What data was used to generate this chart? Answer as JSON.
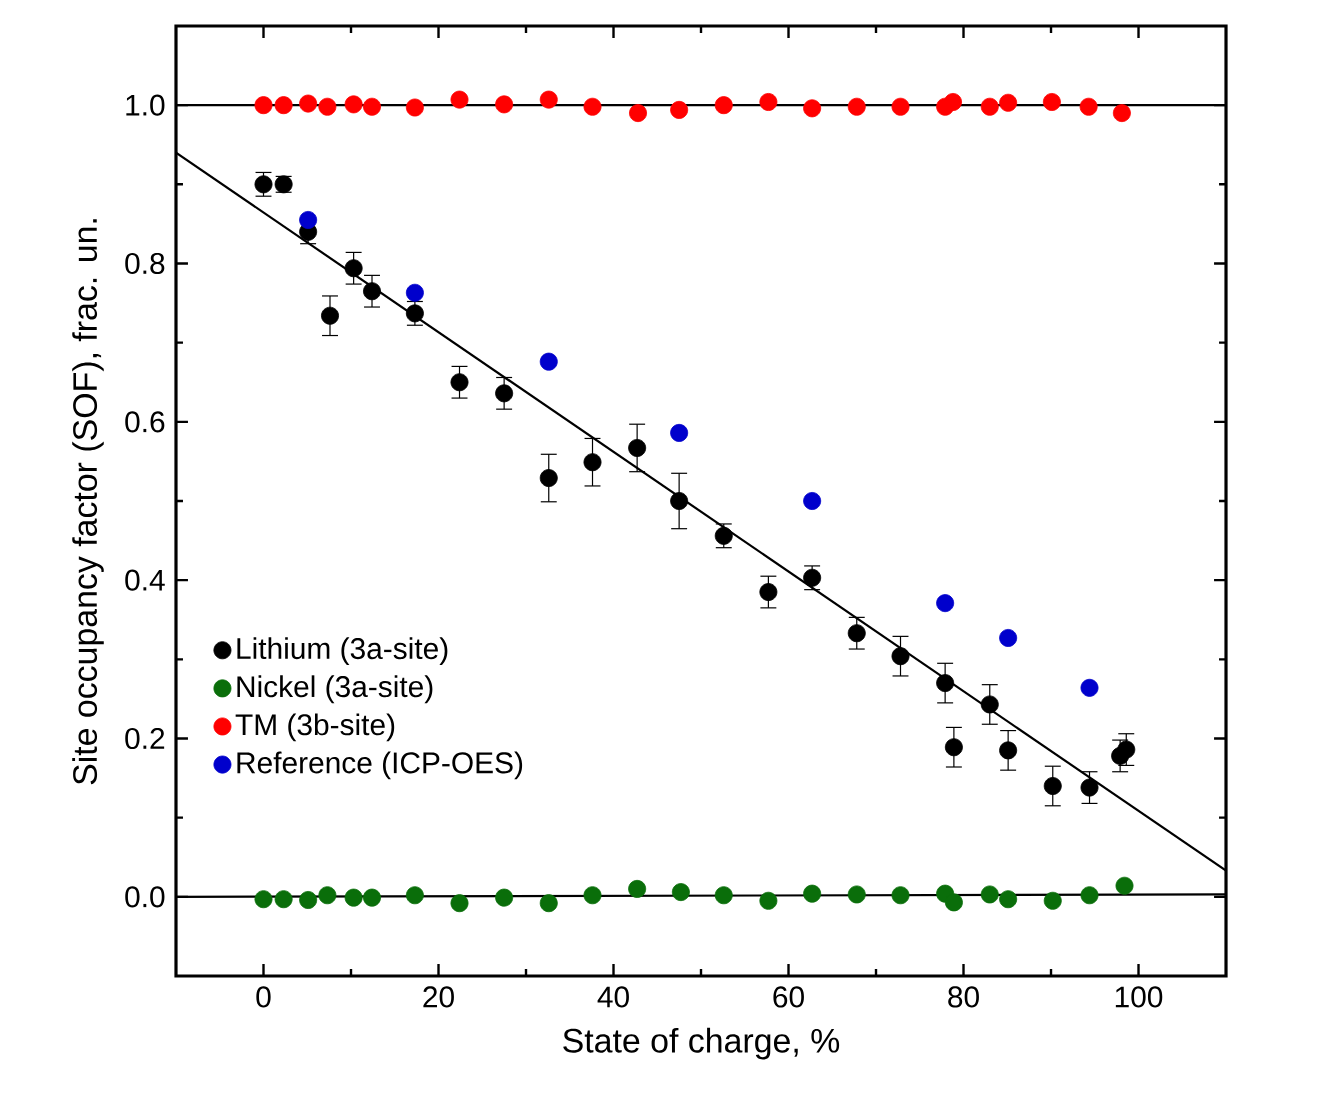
{
  "chart_data": {
    "type": "scatter",
    "xlabel": "State of charge, %",
    "ylabel": "Site occupancy factor (SOF), frac. un.",
    "xlim": [
      -10,
      110
    ],
    "ylim": [
      -0.1,
      1.1
    ],
    "xticks": [
      0,
      20,
      40,
      60,
      80,
      100
    ],
    "yticks": [
      {
        "value": 0,
        "label": "0.0"
      },
      {
        "value": 0.2,
        "label": "0.2"
      },
      {
        "value": 0.4,
        "label": "0.4"
      },
      {
        "value": 0.6,
        "label": "0.6"
      },
      {
        "value": 0.8,
        "label": "0.8"
      },
      {
        "value": 1,
        "label": "1.0"
      }
    ],
    "legend": "bottom left",
    "grid": false,
    "series": [
      {
        "name": "Lithium (3a-site)",
        "marker": "circle",
        "color": "#000000",
        "x": [
          0,
          2.3,
          5.1,
          7.6,
          10.3,
          12.4,
          17.3,
          22.4,
          27.5,
          32.6,
          37.6,
          42.7,
          47.5,
          52.6,
          57.7,
          62.7,
          67.8,
          72.8,
          77.9,
          78.9,
          83,
          85.1,
          90.2,
          94.4,
          97.9,
          98.6
        ],
        "values": [
          0.9,
          0.9,
          0.84,
          0.734,
          0.794,
          0.765,
          0.737,
          0.65,
          0.636,
          0.529,
          0.549,
          0.567,
          0.5,
          0.456,
          0.385,
          0.403,
          0.333,
          0.304,
          0.27,
          0.189,
          0.243,
          0.185,
          0.14,
          0.138,
          0.178,
          0.186
        ],
        "errors": [
          0.015,
          0.01,
          0.015,
          0.025,
          0.02,
          0.02,
          0.015,
          0.02,
          0.02,
          0.03,
          0.03,
          0.03,
          0.035,
          0.015,
          0.02,
          0.015,
          0.02,
          0.025,
          0.025,
          0.025,
          0.025,
          0.025,
          0.025,
          0.02,
          0.02,
          0.02
        ]
      },
      {
        "name": "Nickel (3a-site)",
        "marker": "circle",
        "color": "#0a6e0a",
        "x": [
          0,
          2.3,
          5.1,
          7.3,
          10.3,
          12.4,
          17.3,
          22.4,
          27.5,
          32.6,
          37.6,
          42.7,
          47.7,
          52.6,
          57.7,
          62.7,
          67.8,
          72.8,
          77.9,
          78.9,
          83,
          85.1,
          90.2,
          94.4,
          98.4
        ],
        "values": [
          -0.003,
          -0.003,
          -0.004,
          0.002,
          -0.001,
          -0.001,
          0.002,
          -0.008,
          -0.001,
          -0.008,
          0.002,
          0.01,
          0.006,
          0.002,
          -0.005,
          0.004,
          0.003,
          0.002,
          0.004,
          -0.007,
          0.003,
          -0.003,
          -0.005,
          0.002,
          0.014
        ]
      },
      {
        "name": "TM (3b-site)",
        "marker": "circle",
        "color": "#ff0000",
        "x": [
          0,
          2.3,
          5.1,
          7.3,
          10.3,
          12.4,
          17.3,
          22.4,
          27.5,
          32.6,
          37.6,
          42.8,
          47.5,
          52.6,
          57.7,
          62.7,
          67.8,
          72.8,
          77.9,
          78.8,
          83,
          85.1,
          90.1,
          94.3,
          98.1
        ],
        "values": [
          1.0,
          1.0,
          1.002,
          0.998,
          1.001,
          0.998,
          0.997,
          1.007,
          1.001,
          1.007,
          0.998,
          0.99,
          0.994,
          1.0,
          1.004,
          0.996,
          0.998,
          0.998,
          0.998,
          1.004,
          0.998,
          1.003,
          1.004,
          0.998,
          0.99
        ]
      },
      {
        "name": "Reference (ICP-OES)",
        "marker": "circle",
        "color": "#0000cc",
        "x": [
          5.1,
          17.3,
          32.6,
          47.5,
          62.7,
          77.9,
          85.1,
          94.4
        ],
        "values": [
          0.855,
          0.763,
          0.676,
          0.586,
          0.5,
          0.371,
          0.327,
          0.264
        ]
      },
      {
        "type": "line",
        "marker": "none",
        "color": "#000000",
        "x": [
          -10,
          110
        ],
        "values": [
          0.94,
          0.033
        ]
      },
      {
        "type": "line",
        "marker": "none",
        "color": "#000000",
        "x": [
          -10,
          110
        ],
        "values": [
          1.0,
          1.0
        ]
      },
      {
        "type": "line",
        "marker": "none",
        "color": "#000000",
        "x": [
          -10,
          110
        ],
        "values": [
          0.0,
          0.003
        ]
      }
    ]
  }
}
